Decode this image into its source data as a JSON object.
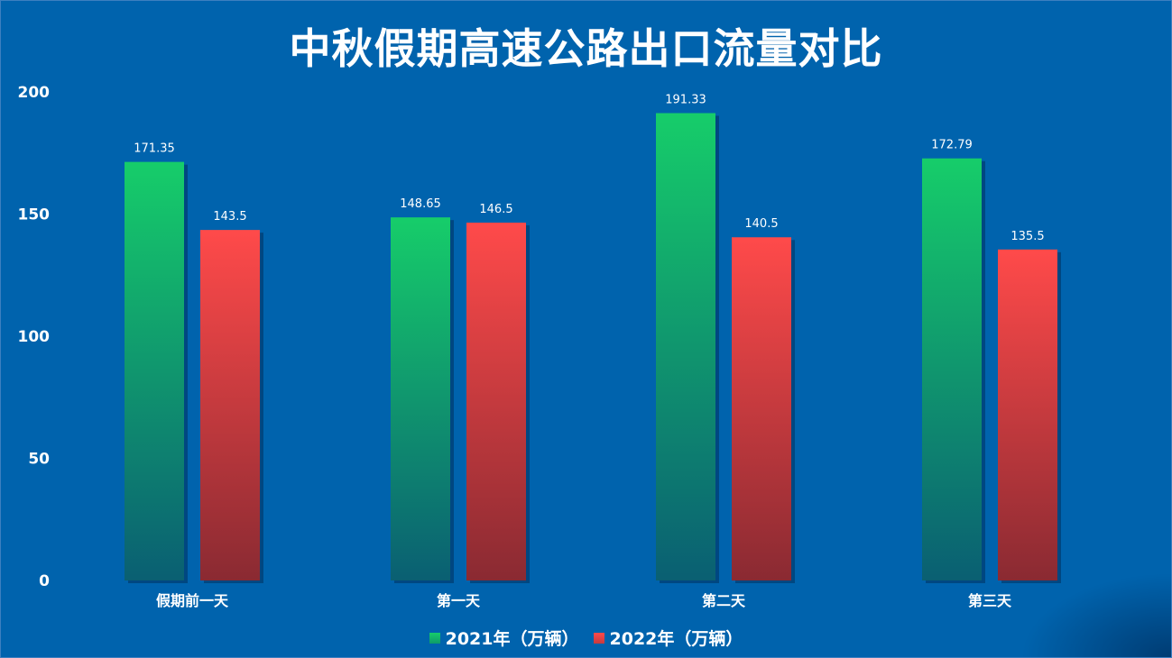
{
  "chart_data": {
    "type": "bar",
    "title": "中秋假期高速公路出口流量对比",
    "categories": [
      "假期前一天",
      "第一天",
      "第二天",
      "第三天"
    ],
    "series": [
      {
        "name": "2021年（万辆）",
        "values": [
          171.35,
          148.65,
          191.33,
          172.79
        ],
        "color_top": "#16cd6a",
        "color_bottom": "#0a5f72"
      },
      {
        "name": "2022年（万辆）",
        "values": [
          143.5,
          146.5,
          140.5,
          135.5
        ],
        "color_top": "#ff4a4a",
        "color_bottom": "#8a2a32"
      }
    ],
    "yticks": [
      "0",
      "50",
      "100",
      "150",
      "200"
    ],
    "ylim": [
      0,
      200
    ],
    "grid": false,
    "legend_position": "bottom-center"
  },
  "colors": {
    "background": "#0063ad",
    "text": "#ffffff"
  }
}
